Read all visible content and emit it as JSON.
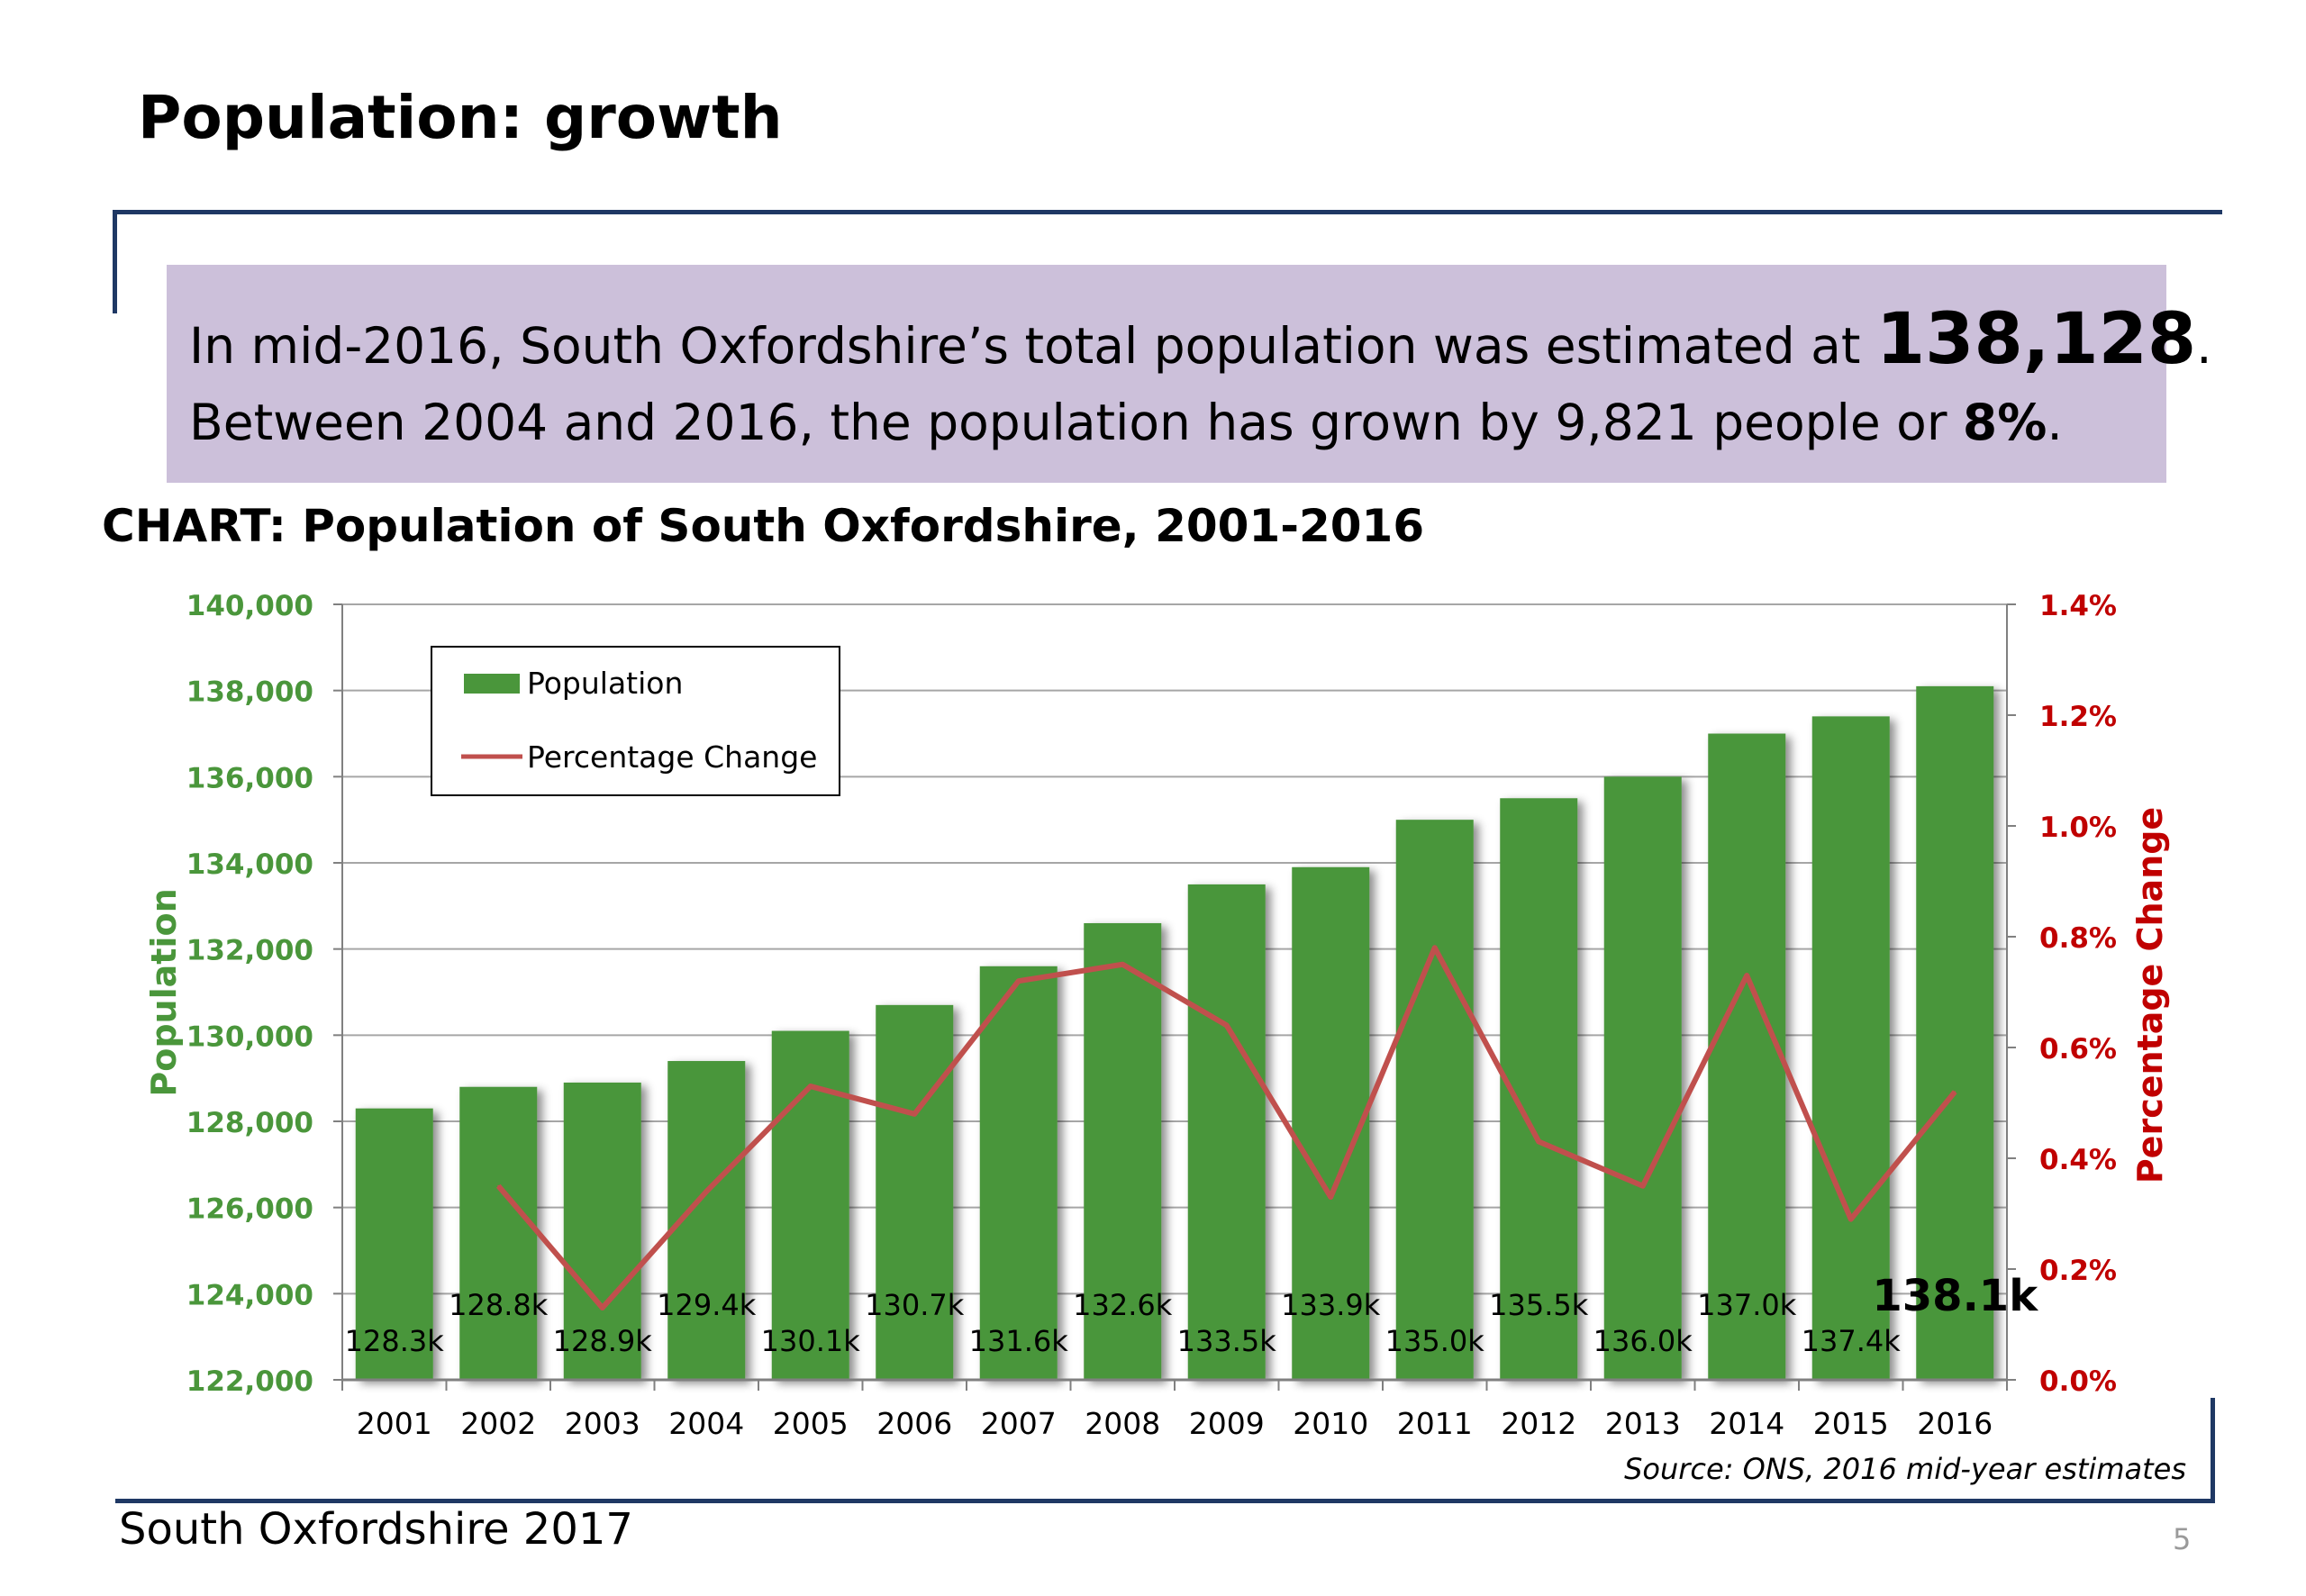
{
  "slide": {
    "title": "Population: growth",
    "summary": {
      "line1_prefix": "In mid-2016, South Oxfordshire’s total population was estimated at ",
      "line1_figure": "138,128",
      "line1_suffix": ".",
      "line2_prefix": "Between 2004 and 2016, the population has grown by 9,821  people or ",
      "line2_figure": "8%",
      "line2_suffix": "."
    },
    "chart_heading": "CHART: Population of South Oxfordshire, 2001-2016",
    "footer": "South Oxfordshire  2017",
    "page_number": "5"
  },
  "colors": {
    "bar": "#4a963b",
    "line": "#c0504d",
    "left_axis_text": "#4a963b",
    "right_axis_text": "#c00000",
    "summary_background": "#ccc0da",
    "rule": "#1f3864"
  },
  "chart_data": {
    "type": "bar",
    "categories": [
      "2001",
      "2002",
      "2003",
      "2004",
      "2005",
      "2006",
      "2007",
      "2008",
      "2009",
      "2010",
      "2011",
      "2012",
      "2013",
      "2014",
      "2015",
      "2016"
    ],
    "series": [
      {
        "name": "Population",
        "type": "bar",
        "axis": "left",
        "values": [
          128300,
          128800,
          128900,
          129400,
          130100,
          130700,
          131600,
          132600,
          133500,
          133900,
          135000,
          135500,
          136000,
          137000,
          137400,
          138100
        ],
        "data_labels": [
          "128.3k",
          "128.8k",
          "128.9k",
          "129.4k",
          "130.1k",
          "130.7k",
          "131.6k",
          "132.6k",
          "133.5k",
          "133.9k",
          "135.0k",
          "135.5k",
          "136.0k",
          "137.0k",
          "137.4k",
          "138.1k"
        ]
      },
      {
        "name": "Percentage Change",
        "type": "line",
        "axis": "right",
        "values": [
          null,
          0.35,
          0.13,
          0.34,
          0.53,
          0.48,
          0.72,
          0.75,
          0.64,
          0.33,
          0.78,
          0.43,
          0.35,
          0.73,
          0.29,
          0.52
        ]
      }
    ],
    "ylabel": "Population",
    "ylim": [
      122000,
      140000
    ],
    "yticks": [
      "122,000",
      "124,000",
      "126,000",
      "128,000",
      "130,000",
      "132,000",
      "134,000",
      "136,000",
      "138,000",
      "140,000"
    ],
    "y2label": "Percentage Change",
    "y2lim": [
      0,
      1.4
    ],
    "y2ticks": [
      "0.0%",
      "0.2%",
      "0.4%",
      "0.6%",
      "0.8%",
      "1.0%",
      "1.2%",
      "1.4%"
    ],
    "grid": true,
    "legend_position": "top-left",
    "source": "Source: ONS, 2016 mid-year estimates"
  }
}
